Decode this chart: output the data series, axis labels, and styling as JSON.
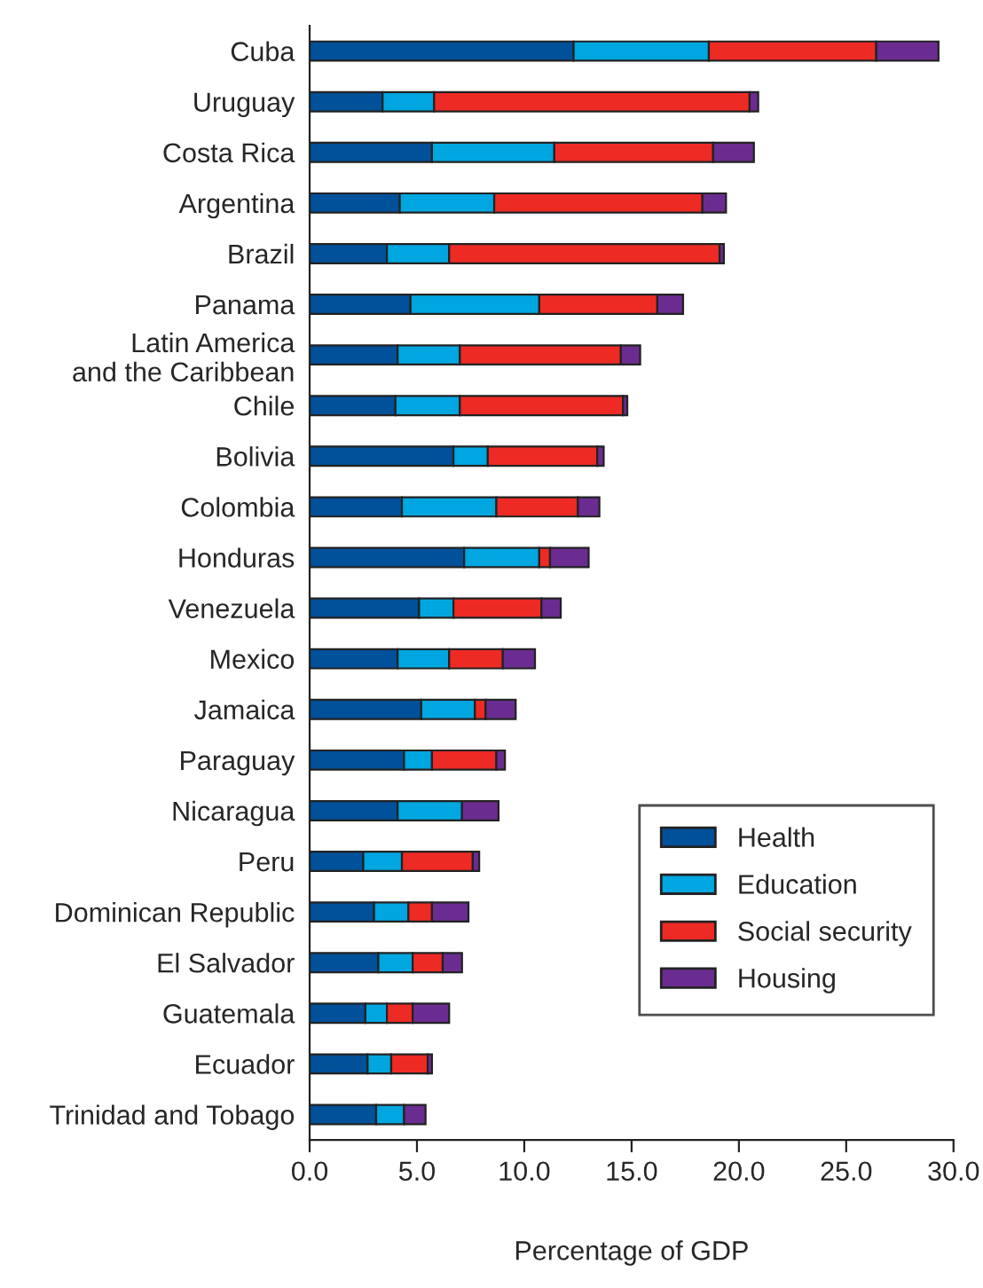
{
  "chart_data": {
    "type": "bar",
    "orientation": "horizontal",
    "stacked": true,
    "xlabel": "Percentage of GDP",
    "categories": [
      "Cuba",
      "Uruguay",
      "Costa Rica",
      "Argentina",
      "Brazil",
      "Panama",
      "Latin America\nand the Caribbean",
      "Chile",
      "Bolivia",
      "Colombia",
      "Honduras",
      "Venezuela",
      "Mexico",
      "Jamaica",
      "Paraguay",
      "Nicaragua",
      "Peru",
      "Dominican Republic",
      "El Salvador",
      "Guatemala",
      "Ecuador",
      "Trinidad and Tobago"
    ],
    "series": [
      {
        "name": "Health",
        "color": "#00509a",
        "values": [
          12.3,
          3.4,
          5.7,
          4.2,
          3.6,
          4.7,
          4.1,
          4.0,
          6.7,
          4.3,
          7.2,
          5.1,
          4.1,
          5.2,
          4.4,
          4.1,
          2.5,
          3.0,
          3.2,
          2.6,
          2.7,
          3.1
        ]
      },
      {
        "name": "Education",
        "color": "#00a6e0",
        "values": [
          6.3,
          2.4,
          5.7,
          4.4,
          2.9,
          6.0,
          2.9,
          3.0,
          1.6,
          4.4,
          3.5,
          1.6,
          2.4,
          2.5,
          1.3,
          3.0,
          1.8,
          1.6,
          1.6,
          1.0,
          1.1,
          1.3
        ]
      },
      {
        "name": "Social security",
        "color": "#ee2a24",
        "values": [
          7.8,
          14.7,
          7.4,
          9.7,
          12.6,
          5.5,
          7.5,
          7.6,
          5.1,
          3.8,
          0.5,
          4.1,
          2.5,
          0.5,
          3.0,
          0,
          3.3,
          1.1,
          1.4,
          1.2,
          1.7,
          null
        ]
      },
      {
        "name": "Housing",
        "color": "#6b2c91",
        "values": [
          2.9,
          0.4,
          1.9,
          1.1,
          0.2,
          1.2,
          0.9,
          0.2,
          0.3,
          1.0,
          1.8,
          0.9,
          1.5,
          1.4,
          0.4,
          1.7,
          0.3,
          1.7,
          0.9,
          1.7,
          0.2,
          1.0
        ]
      }
    ],
    "xlim": [
      0,
      30
    ],
    "xticks": [
      {
        "value": 0,
        "label": "0.0"
      },
      {
        "value": 5,
        "label": "5.0"
      },
      {
        "value": 10,
        "label": "10.0"
      },
      {
        "value": 15,
        "label": "15.0"
      },
      {
        "value": 20,
        "label": "20.0"
      },
      {
        "value": 25,
        "label": "25.0"
      },
      {
        "value": 30,
        "label": "30.0"
      }
    ],
    "grid": false,
    "legend": "bottom right"
  }
}
